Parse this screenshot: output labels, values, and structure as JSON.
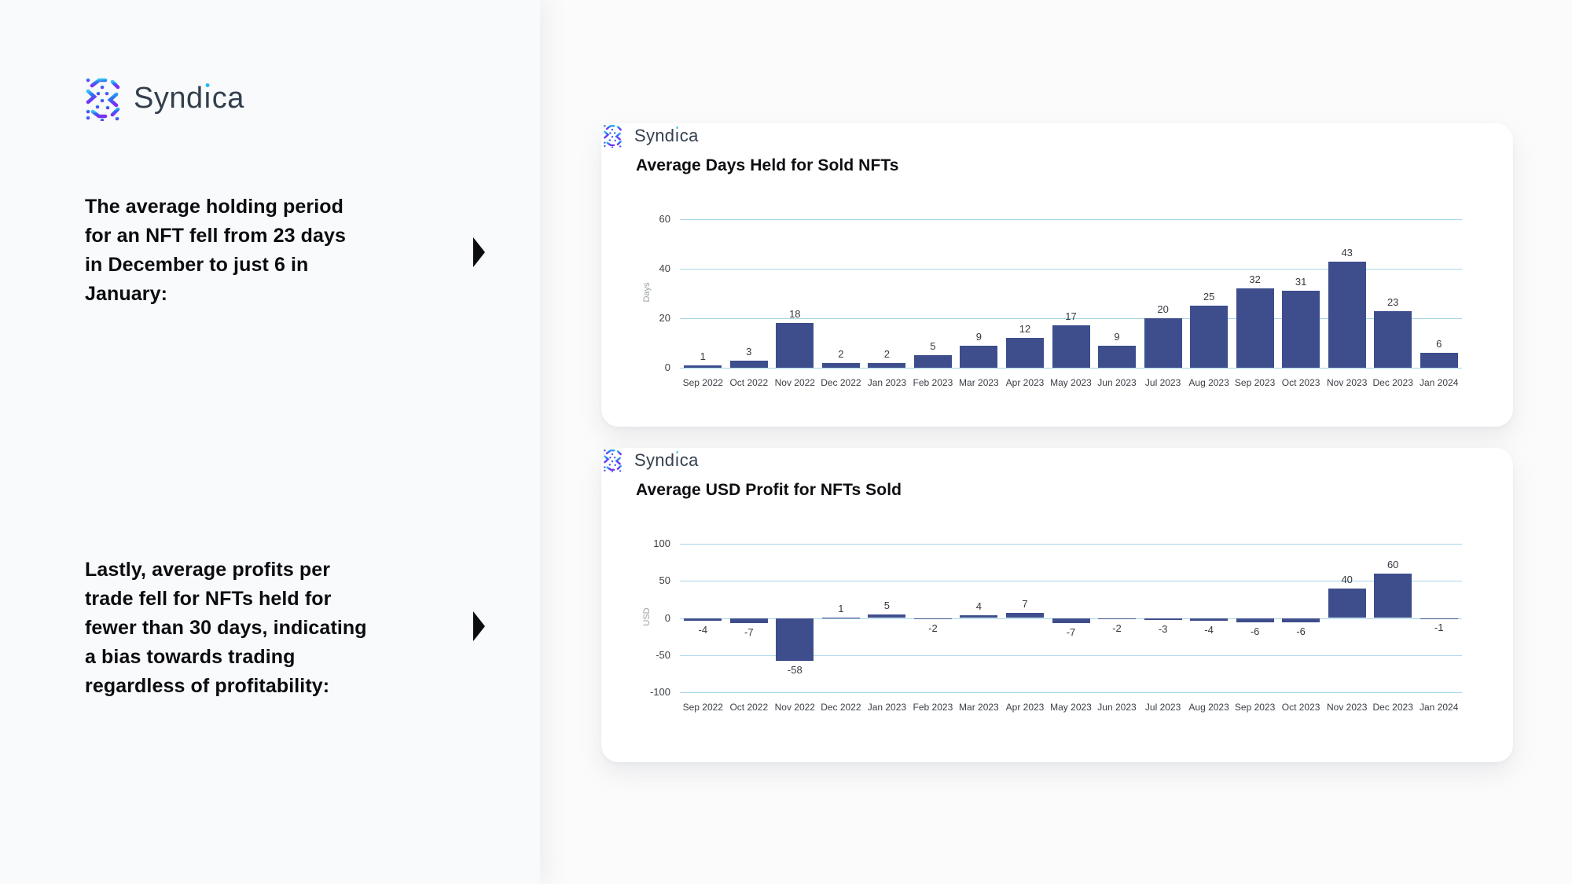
{
  "brand": {
    "name": "Syndica"
  },
  "left_panel": {
    "statements": [
      {
        "text": "The average holding period\nfor an NFT fell from 23 days\nin December to just 6 in\nJanuary:"
      },
      {
        "text": "Lastly, average profits per\ntrade fell for NFTs held for\nfewer than 30 days, indicating\na bias towards trading\nregardless of profitability:"
      }
    ]
  },
  "colors": {
    "bar": "#3e4d8c",
    "gridline": "#a5d5e8",
    "left_panel_bg": "#f8fafc",
    "page_bg": "#fbfbfb",
    "logo_cyan": "#29b6f6",
    "logo_blue": "#2e6bf2",
    "logo_purple": "#7d2ff5",
    "brand_text": "#333f4d"
  },
  "chart_data": [
    {
      "type": "bar",
      "title": "Average Days Held for Sold NFTs",
      "xlabel": "",
      "ylabel": "Days",
      "categories": [
        "Sep 2022",
        "Oct 2022",
        "Nov 2022",
        "Dec 2022",
        "Jan 2023",
        "Feb 2023",
        "Mar 2023",
        "Apr 2023",
        "May 2023",
        "Jun 2023",
        "Jul 2023",
        "Aug 2023",
        "Sep 2023",
        "Oct 2023",
        "Nov 2023",
        "Dec 2023",
        "Jan 2024"
      ],
      "values": [
        1,
        3,
        18,
        2,
        2,
        5,
        9,
        12,
        17,
        9,
        20,
        25,
        32,
        31,
        43,
        23,
        6
      ],
      "ylim": [
        0,
        60
      ],
      "yticks": [
        0,
        20,
        40,
        60
      ],
      "grid": true,
      "legend": "none",
      "bar_color": "#3e4d8c"
    },
    {
      "type": "bar",
      "title": "Average USD Profit for NFTs Sold",
      "xlabel": "",
      "ylabel": "USD",
      "categories": [
        "Sep 2022",
        "Oct 2022",
        "Nov 2022",
        "Dec 2022",
        "Jan 2023",
        "Feb 2023",
        "Mar 2023",
        "Apr 2023",
        "May 2023",
        "Jun 2023",
        "Jul 2023",
        "Aug 2023",
        "Sep 2023",
        "Oct 2023",
        "Nov 2023",
        "Dec 2023",
        "Jan 2024"
      ],
      "values": [
        -4,
        -7,
        -58,
        1,
        5,
        -2,
        4,
        7,
        -7,
        -2,
        -3,
        -4,
        -6,
        -6,
        40,
        60,
        -1
      ],
      "ylim": [
        -100,
        100
      ],
      "yticks": [
        -100,
        -50,
        0,
        50,
        100
      ],
      "grid": true,
      "legend": "none",
      "bar_color": "#3e4d8c"
    }
  ]
}
